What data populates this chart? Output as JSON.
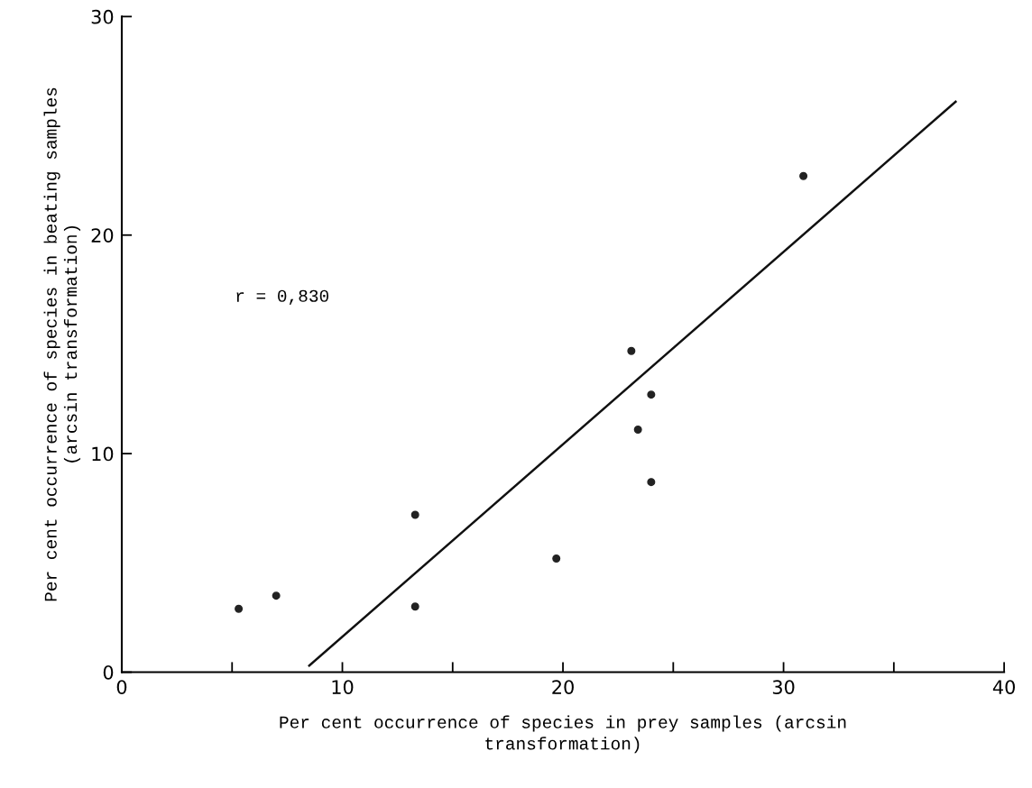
{
  "chart_data": {
    "type": "scatter",
    "xlabel": "Per cent occurrence of species in prey samples (arcsin\ntransformation)",
    "ylabel": "Per cent occurrence of species in beating samples\n(arcsin transformation)",
    "series": [
      {
        "color": "#222222",
        "marker": "circle",
        "x": [
          5.3,
          7.0,
          13.3,
          13.3,
          19.7,
          23.1,
          23.4,
          24.0,
          24.0,
          30.9
        ],
        "values": [
          2.9,
          3.5,
          7.2,
          3.0,
          5.2,
          14.7,
          11.1,
          12.7,
          8.7,
          22.7
        ]
      },
      {
        "type": "line",
        "color": "#111111",
        "marker": "none",
        "line_style": "solid",
        "x": [
          8.5,
          37.8
        ],
        "values": [
          0.3,
          26.1
        ]
      }
    ],
    "annotations": [
      "r = 0,830"
    ],
    "xlim": [
      0,
      40
    ],
    "ylim": [
      0,
      30
    ],
    "xticks": [
      0,
      {
        "value": 5,
        "label": null
      },
      10,
      {
        "value": 15,
        "label": null
      },
      20,
      {
        "value": 25,
        "label": null
      },
      30,
      {
        "value": 35,
        "label": null
      },
      40
    ],
    "yticks": [
      0,
      10,
      20,
      30
    ],
    "grid": false,
    "legend": false
  }
}
